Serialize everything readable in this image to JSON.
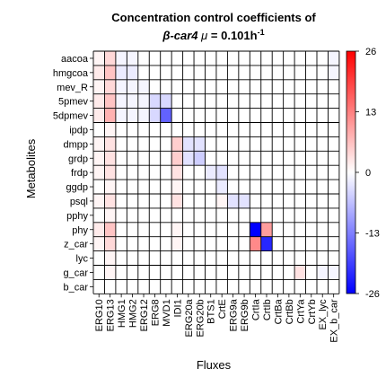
{
  "chart_data": {
    "type": "heatmap",
    "title_line1": "Concentration control coefficients of",
    "title_prefix": "β-car4",
    "title_mu": "μ",
    "title_value": " = 0.101h",
    "title_exponent": "-1",
    "xlabel": "Fluxes",
    "ylabel": "Metabolites",
    "x_labels": [
      "ERG10",
      "ERG13",
      "HMG1",
      "HMG2",
      "ERG12",
      "ERG8",
      "MVD1",
      "IDI1",
      "ERG20a",
      "ERG20b",
      "BTS1",
      "CrtE",
      "ERG9a",
      "ERG9b",
      "CrtIa",
      "CrtIb",
      "CrtBa",
      "CrtBb",
      "CrtYa",
      "CrtYb",
      "EX_lyc",
      "EX_b_car"
    ],
    "y_labels": [
      "aacoa",
      "hmgcoa",
      "mev_R",
      "5pmev",
      "5dpmev",
      "ipdp",
      "dmpp",
      "grdp",
      "frdp",
      "ggdp",
      "psql",
      "pphy",
      "phy",
      "z_car",
      "lyc",
      "g_car",
      "b_car"
    ],
    "colorbar": {
      "min": -26,
      "max": 26,
      "ticks": [
        26,
        13,
        0,
        -13,
        -26
      ],
      "low_color": "#0000ff",
      "mid_color": "#ffffff",
      "high_color": "#ff0000"
    },
    "grid": true,
    "values": [
      [
        1,
        4,
        -1,
        -1,
        0,
        0,
        0,
        0,
        0,
        0,
        0,
        0,
        0,
        0,
        0,
        0,
        0,
        0,
        0,
        0,
        0,
        -1
      ],
      [
        2,
        6,
        -2,
        -2,
        0,
        0,
        0,
        0,
        0,
        0,
        0,
        0,
        0,
        0,
        0,
        0,
        0,
        0,
        0,
        0,
        0,
        -1
      ],
      [
        1,
        4,
        -1,
        -1,
        -1,
        0,
        0,
        0,
        0,
        0,
        0,
        0,
        0,
        0,
        0,
        0,
        0,
        0,
        0,
        0,
        0,
        0
      ],
      [
        2,
        6,
        -1,
        -1,
        -1,
        -4,
        -4,
        0,
        0,
        0,
        0,
        0,
        0,
        0,
        0,
        0,
        0,
        0,
        0,
        0,
        0,
        0
      ],
      [
        2,
        8,
        -1,
        -1,
        -1,
        -4,
        -16,
        0,
        0,
        0,
        0,
        0,
        0,
        0,
        0,
        0,
        0,
        0,
        0,
        0,
        0,
        0
      ],
      [
        0,
        1,
        0,
        0,
        0,
        0,
        0,
        0,
        0,
        0,
        0,
        0,
        0,
        0,
        0,
        0,
        0,
        0,
        0,
        0,
        0,
        0
      ],
      [
        1,
        3,
        0,
        0,
        0,
        0,
        0,
        5,
        -3,
        -3,
        0,
        0,
        0,
        0,
        0,
        0,
        0,
        0,
        0,
        0,
        0,
        0
      ],
      [
        1,
        3,
        0,
        0,
        0,
        0,
        0,
        5,
        -3,
        -5,
        0,
        0,
        0,
        0,
        0,
        0,
        0,
        0,
        0,
        0,
        0,
        0
      ],
      [
        1,
        3,
        0,
        0,
        0,
        0,
        0,
        3,
        0,
        0,
        -2,
        -3,
        0,
        0,
        0,
        0,
        0,
        0,
        0,
        0,
        0,
        0
      ],
      [
        0,
        1,
        0,
        0,
        0,
        0,
        0,
        1,
        0,
        0,
        0,
        -2,
        0,
        0,
        0,
        0,
        0,
        0,
        0,
        0,
        0,
        0
      ],
      [
        1,
        3,
        0,
        0,
        0,
        0,
        0,
        3,
        0,
        0,
        0,
        1,
        -3,
        -3,
        0,
        0,
        0,
        0,
        0,
        0,
        0,
        0
      ],
      [
        0,
        1,
        0,
        0,
        0,
        0,
        0,
        0,
        0,
        0,
        0,
        0,
        0,
        0,
        0,
        0,
        0,
        0,
        0,
        0,
        0,
        0
      ],
      [
        2,
        6,
        0,
        0,
        0,
        0,
        0,
        1,
        0,
        0,
        0,
        0,
        0,
        0,
        -26,
        10,
        0,
        0,
        0,
        0,
        0,
        0
      ],
      [
        1,
        4,
        0,
        0,
        0,
        0,
        0,
        1,
        0,
        0,
        0,
        0,
        0,
        0,
        12,
        -22,
        0,
        0,
        0,
        0,
        0,
        0
      ],
      [
        0,
        1,
        0,
        0,
        0,
        0,
        0,
        0,
        0,
        0,
        0,
        0,
        0,
        0,
        0,
        0,
        0,
        0,
        0,
        0,
        0,
        0
      ],
      [
        0,
        1,
        0,
        0,
        0,
        0,
        0,
        0,
        0,
        0,
        0,
        0,
        0,
        0,
        0,
        0,
        0,
        0,
        3,
        0,
        -1,
        -1
      ],
      [
        0,
        0,
        0,
        0,
        0,
        0,
        0,
        0,
        0,
        0,
        0,
        0,
        0,
        0,
        0,
        0,
        0,
        0,
        0,
        0,
        0,
        0
      ]
    ]
  }
}
